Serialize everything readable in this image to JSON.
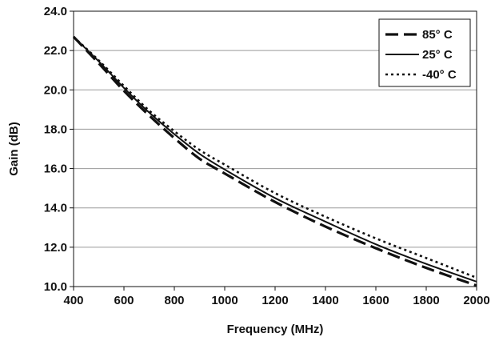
{
  "chart_data": {
    "type": "line",
    "title": "",
    "xlabel": "Frequency (MHz)",
    "ylabel": "Gain (dB)",
    "xlim": [
      400,
      2000
    ],
    "ylim": [
      10.0,
      24.0
    ],
    "x_ticks": [
      "400",
      "600",
      "800",
      "1000",
      "1200",
      "1400",
      "1600",
      "1800",
      "2000"
    ],
    "y_ticks": [
      "10.0",
      "12.0",
      "14.0",
      "16.0",
      "18.0",
      "20.0",
      "22.0",
      "24.0"
    ],
    "grid": "horizontal",
    "legend_position": "top-right",
    "x": [
      400,
      500,
      600,
      700,
      800,
      900,
      1000,
      1200,
      1400,
      1600,
      1800,
      2000
    ],
    "series": [
      {
        "name": "85° C",
        "style": "dashed",
        "color": "#111111",
        "values": [
          22.7,
          21.35,
          19.95,
          18.7,
          17.55,
          16.5,
          15.75,
          14.3,
          13.05,
          11.95,
          10.95,
          10.05
        ]
      },
      {
        "name": "25° C",
        "style": "solid",
        "color": "#111111",
        "values": [
          22.7,
          21.45,
          20.1,
          18.85,
          17.75,
          16.75,
          15.95,
          14.5,
          13.3,
          12.15,
          11.15,
          10.25
        ]
      },
      {
        "name": "-40° C",
        "style": "dotted",
        "color": "#111111",
        "values": [
          22.7,
          21.5,
          20.2,
          18.95,
          17.9,
          16.95,
          16.2,
          14.75,
          13.55,
          12.45,
          11.45,
          10.45
        ]
      }
    ]
  }
}
